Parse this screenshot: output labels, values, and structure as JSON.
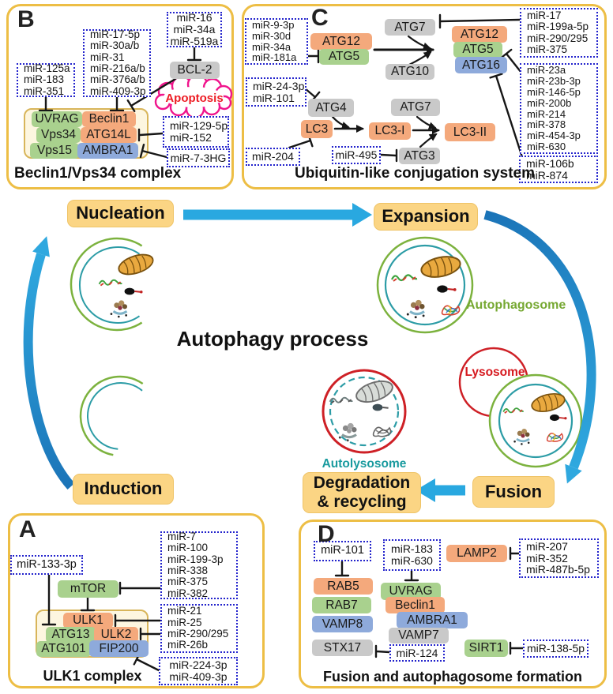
{
  "palette": {
    "panel_border": "#EDBE45",
    "stage_bg": "#FBD584",
    "protein_orange": "#F4A97C",
    "protein_green": "#A9D18E",
    "protein_blue": "#8EAADB",
    "protein_gray": "#C9C9C9",
    "mir_box_border": "#2323CC",
    "arrow_blue_light": "#29A8E0",
    "arrow_blue_dark": "#1B74B8",
    "apoptosis_outline": "#F0148C",
    "apoptosis_text": "#ED1C24",
    "lysosome_red": "#CE2026",
    "autophagosome_green": "#76A832",
    "autolysosome_teal": "#189A9E",
    "inhibition_line": "#161616"
  },
  "icons": [
    "mitochondrion-icon",
    "dna-squiggle-icon",
    "protein-aggregate-icon",
    "ribosome-cluster-icon",
    "rna-tangle-icon",
    "apoptosis-cloud-icon",
    "phagophore-icon",
    "autophagosome-icon",
    "lysosome-icon",
    "autolysosome-icon"
  ],
  "center": {
    "title": "Autophagy process",
    "stages": {
      "nucleation": "Nucleation",
      "expansion": "Expansion",
      "induction": "Induction",
      "fusion": "Fusion",
      "degradation_line1": "Degradation",
      "degradation_line2": "& recycling"
    },
    "labels": {
      "autophagosome": "Autophagosome",
      "lysosome": "Lysosome",
      "autolysosome": "Autolysosome"
    }
  },
  "panelB": {
    "letter": "B",
    "caption": "Beclin1/Vps34 complex",
    "apoptosis": "Apoptosis",
    "proteins": {
      "uvrag": "UVRAG",
      "beclin1": "Beclin1",
      "vps34": "Vps34",
      "atg14l": "ATG14L",
      "vps15": "Vps15",
      "ambra1": "AMBRA1",
      "bcl2": "BCL-2"
    },
    "mir_uvrag": [
      "miR-125a",
      "miR-183",
      "miR-351"
    ],
    "mir_beclin1": [
      "miR-17-5p",
      "miR-30a/b",
      "miR-31",
      "miR-216a/b",
      "miR-376a/b",
      "miR-409-3p"
    ],
    "mir_bcl2": [
      "miR-16",
      "miR-34a",
      "miR-519a"
    ],
    "mir_atg14l": [
      "miR-129-5p",
      "miR-152"
    ],
    "mir_ambra1": [
      "miR-7-3HG"
    ]
  },
  "panelC": {
    "letter": "C",
    "caption": "Ubiquitin-like conjugation system",
    "proteins": {
      "atg12a": "ATG12",
      "atg5a": "ATG5",
      "atg7a": "ATG7",
      "atg10": "ATG10",
      "atg12b": "ATG12",
      "atg5b": "ATG5",
      "atg16": "ATG16",
      "atg4": "ATG4",
      "lc3": "LC3",
      "lc3i": "LC3-I",
      "atg7b": "ATG7",
      "atg3": "ATG3",
      "lc3ii": "LC3-II"
    },
    "mir_atg5": [
      "miR-9-3p",
      "miR-30d",
      "miR-34a",
      "miR-181a"
    ],
    "mir_atg4": [
      "miR-24-3p",
      "miR-101"
    ],
    "mir_lc3": [
      "miR-204"
    ],
    "mir_atg3": [
      "miR-495"
    ],
    "mir_atg7": [
      "miR-17",
      "miR-199a-5p",
      "miR-290/295",
      "miR-375"
    ],
    "mir_atg5b": [
      "miR-23a",
      "miR-23b-3p",
      "miR-146-5p",
      "miR-200b",
      "miR-214",
      "miR-378",
      "miR-454-3p",
      "miR-630"
    ],
    "mir_atg16": [
      "miR-106b",
      "miR-874"
    ]
  },
  "panelA": {
    "letter": "A",
    "caption": "ULK1 complex",
    "proteins": {
      "mtor": "mTOR",
      "ulk1": "ULK1",
      "atg13": "ATG13",
      "ulk2": "ULK2",
      "atg101": "ATG101",
      "fip200": "FIP200"
    },
    "mir_atg13": [
      "miR-133-3p"
    ],
    "mir_mtor": [
      "miR-7",
      "miR-100",
      "miR-199-3p",
      "miR-338",
      "miR-375",
      "miR-382"
    ],
    "mir_ulk": [
      "miR-21",
      "miR-25",
      "miR-290/295",
      "miR-26b"
    ],
    "mir_fip200": [
      "miR-224-3p",
      "miR-409-3p"
    ]
  },
  "panelD": {
    "letter": "D",
    "caption": "Fusion and autophagosome formation",
    "proteins": {
      "lamp2": "LAMP2",
      "rab5": "RAB5",
      "rab7": "RAB7",
      "vamp8": "VAMP8",
      "stx17": "STX17",
      "uvrag": "UVRAG",
      "beclin1": "Beclin1",
      "ambra1": "AMBRA1",
      "vamp7": "VAMP7",
      "sirt1": "SIRT1"
    },
    "mir_rab5": [
      "miR-101"
    ],
    "mir_uvrag": [
      "miR-183",
      "miR-630"
    ],
    "mir_lamp2": [
      "miR-207",
      "miR-352",
      "miR-487b-5p"
    ],
    "mir_stx17": [
      "miR-124"
    ],
    "mir_sirt1": [
      "miR-138-5p"
    ]
  }
}
